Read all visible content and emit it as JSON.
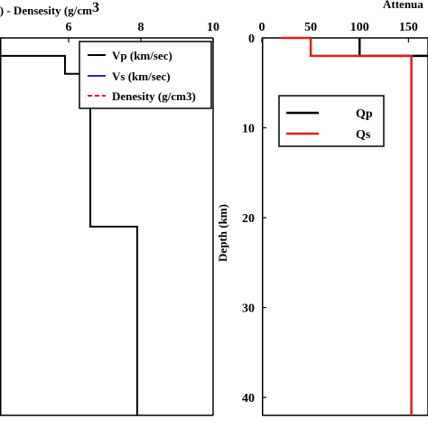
{
  "chart_data": [
    {
      "type": "line",
      "panel": "left",
      "title": "c) - Densesity (g/cm",
      "title_superscript": "3",
      "x_ticks": [
        "6",
        "8",
        "10"
      ],
      "x_tick_values": [
        6,
        8,
        10
      ],
      "xlim": [
        4.1,
        10
      ],
      "ylim": [
        0,
        42
      ],
      "grid": false,
      "legend_position": "top-right",
      "series": [
        {
          "name": "Vp (km/sec)",
          "color": "#000000",
          "style": "solid",
          "points": [
            [
              4.1,
              0
            ],
            [
              4.1,
              2
            ],
            [
              5.9,
              2
            ],
            [
              5.9,
              4
            ],
            [
              6.6,
              4
            ],
            [
              6.6,
              21
            ],
            [
              7.9,
              21
            ],
            [
              7.9,
              30
            ],
            [
              7.9,
              30
            ],
            [
              7.9,
              42
            ]
          ]
        },
        {
          "name": "Vs (km/sec)",
          "color": "#1f2fa8",
          "style": "solid",
          "points": []
        },
        {
          "name": "Denesity (g/cm3)",
          "color": "#e31a1c",
          "style": "dashed",
          "points": []
        }
      ]
    },
    {
      "type": "line",
      "panel": "right",
      "title": "Attenua",
      "ylabel": "Depth (km)",
      "x_ticks": [
        "0",
        "50",
        "100",
        "150"
      ],
      "x_tick_values": [
        0,
        50,
        100,
        150
      ],
      "y_ticks": [
        "0",
        "10",
        "20",
        "30",
        "40"
      ],
      "y_tick_values": [
        0,
        10,
        20,
        30,
        40
      ],
      "xlim": [
        0,
        170
      ],
      "ylim": [
        0,
        42
      ],
      "grid": false,
      "legend_position": "upper-left",
      "series": [
        {
          "name": "Qp",
          "color": "#000000",
          "style": "solid",
          "points": [
            [
              100,
              0
            ],
            [
              100,
              2
            ],
            [
              170,
              2
            ]
          ]
        },
        {
          "name": "Qs",
          "color": "#e31a1c",
          "style": "solid",
          "points": [
            [
              20,
              0
            ],
            [
              50,
              0
            ],
            [
              50,
              2
            ],
            [
              153,
              2
            ],
            [
              153,
              42
            ]
          ]
        }
      ]
    }
  ]
}
